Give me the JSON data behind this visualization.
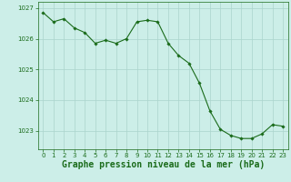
{
  "x": [
    0,
    1,
    2,
    3,
    4,
    5,
    6,
    7,
    8,
    9,
    10,
    11,
    12,
    13,
    14,
    15,
    16,
    17,
    18,
    19,
    20,
    21,
    22,
    23
  ],
  "y": [
    1026.85,
    1026.55,
    1026.65,
    1026.35,
    1026.2,
    1025.85,
    1025.95,
    1025.85,
    1026.0,
    1026.55,
    1026.6,
    1026.55,
    1025.85,
    1025.45,
    1025.2,
    1024.55,
    1023.65,
    1023.05,
    1022.85,
    1022.75,
    1022.75,
    1022.9,
    1023.2,
    1023.15
  ],
  "xlim": [
    -0.5,
    23.5
  ],
  "ylim": [
    1022.4,
    1027.2
  ],
  "yticks": [
    1023,
    1024,
    1025,
    1026,
    1027
  ],
  "xticks": [
    0,
    1,
    2,
    3,
    4,
    5,
    6,
    7,
    8,
    9,
    10,
    11,
    12,
    13,
    14,
    15,
    16,
    17,
    18,
    19,
    20,
    21,
    22,
    23
  ],
  "xlabel": "Graphe pression niveau de la mer (hPa)",
  "line_color": "#1a6b1a",
  "marker_color": "#1a6b1a",
  "bg_color": "#cceee8",
  "grid_color": "#aad4cc",
  "axis_color": "#1a6b1a",
  "tick_color": "#1a6b1a",
  "xlabel_color": "#1a6b1a",
  "tick_fontsize": 5.0,
  "xlabel_fontsize": 7.0
}
